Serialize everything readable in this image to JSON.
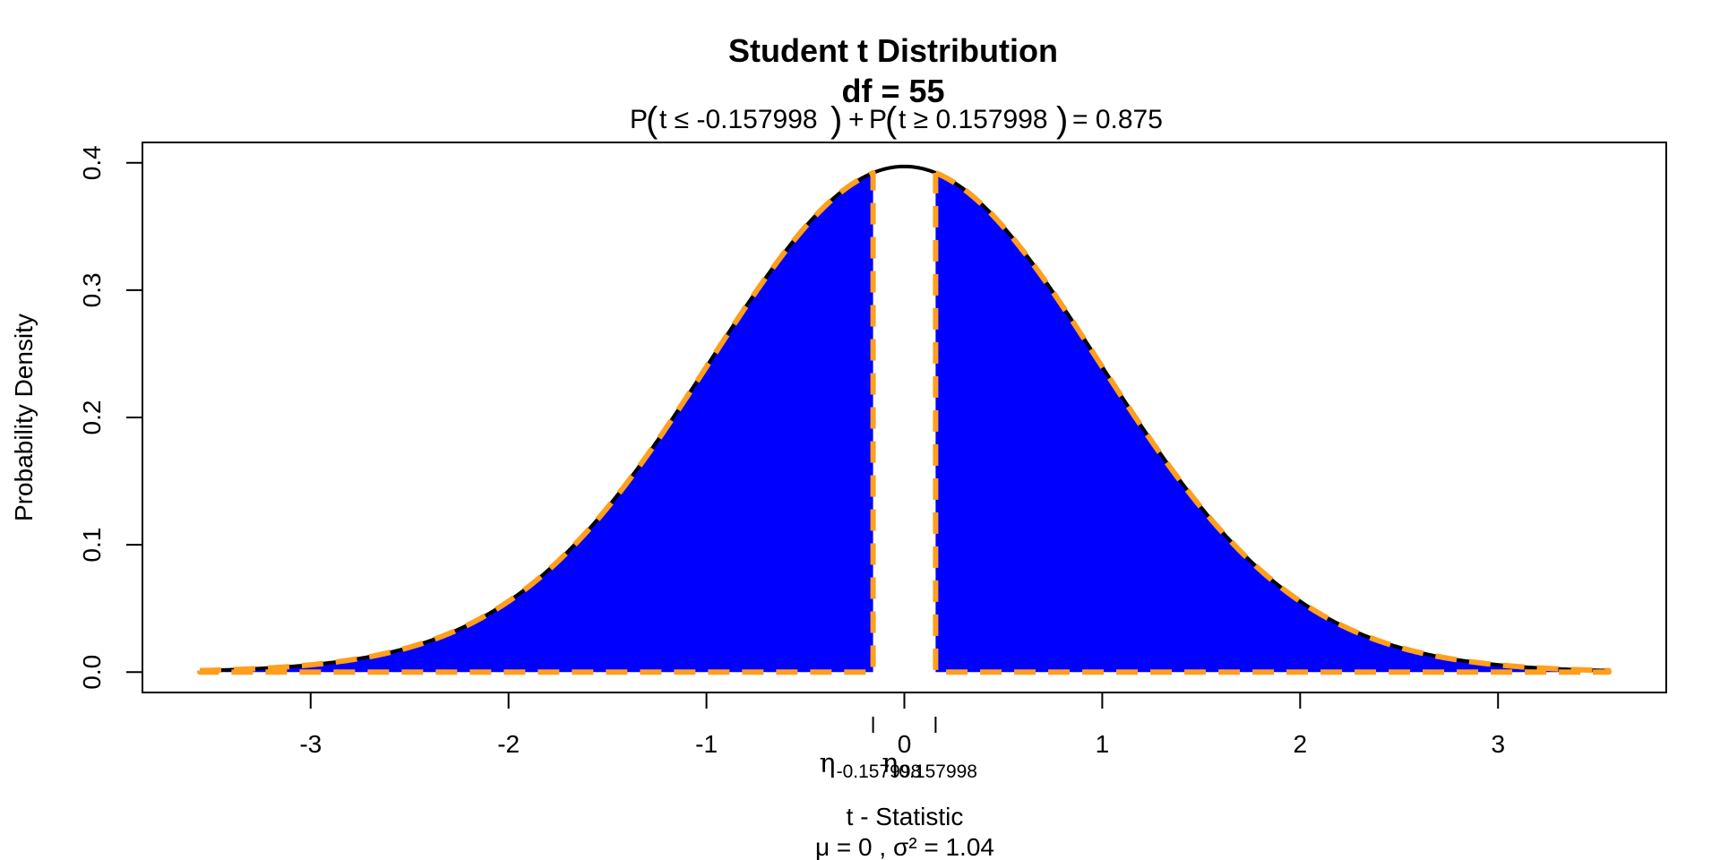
{
  "chart_data": {
    "type": "area",
    "title": "Student t Distribution",
    "title_line2": "df  =  55",
    "subtitle": "P(t ≤ -0.157998) + P(t ≥ 0.157998) = 0.875",
    "subtitle_parts": {
      "left_prefix": "P",
      "left_inner": "t ≤ -0.157998",
      "plus": "+",
      "right_prefix": "P",
      "right_inner": "t ≥ 0.157998",
      "equals": "= 0.875"
    },
    "xlabel": "t - Statistic",
    "xlabel_line2": "μ =  0 , σ² =  1.04",
    "ylabel": "Probability Density",
    "df": 55,
    "xlim": [
      -3.85,
      3.85
    ],
    "ylim": [
      -0.016,
      0.416
    ],
    "x_curve_range": [
      -3.56,
      3.56
    ],
    "x_ticks": [
      -3,
      -2,
      -1,
      0,
      1,
      2,
      3
    ],
    "x_tick_labels": [
      "-3",
      "-2",
      "-1",
      "0",
      "1",
      "2",
      "3"
    ],
    "y_ticks": [
      0.0,
      0.1,
      0.2,
      0.3,
      0.4
    ],
    "y_tick_labels": [
      "0.0",
      "0.1",
      "0.2",
      "0.3",
      "0.4"
    ],
    "critical_values": [
      -0.157998,
      0.157998
    ],
    "critical_labels": [
      {
        "symbol": "η",
        "subscript": "-0.157998"
      },
      {
        "symbol": "η",
        "subscript": "0.157998"
      }
    ],
    "shaded_regions": [
      {
        "from": -3.56,
        "to": -0.157998
      },
      {
        "from": 0.157998,
        "to": 3.56
      }
    ],
    "colors": {
      "fill": "#0000ff",
      "curve": "#000000",
      "dash": "#ff9f1c"
    },
    "grid": false,
    "legend": "none"
  }
}
